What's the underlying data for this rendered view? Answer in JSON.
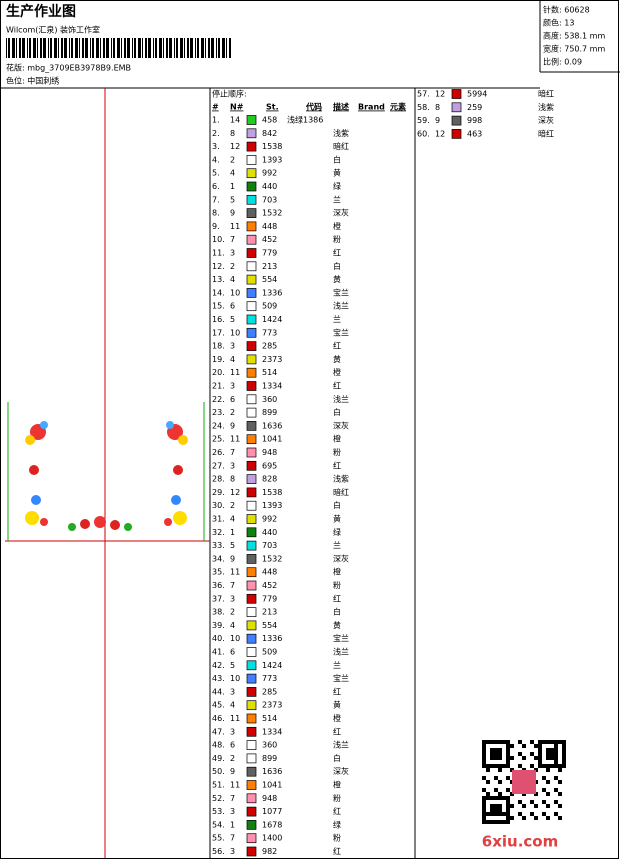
{
  "header": {
    "title": "生产作业图",
    "studio": "Wilcom(汇泉) 装饰工作室",
    "pattern": "花版: mbg_3709EB3978B9.EMB",
    "colorway": "色位: 中国刺绣"
  },
  "info": [
    "针数: 60628",
    "颜色: 13",
    "高度: 538.1 mm",
    "宽度: 750.7 mm",
    "比例: 0.09"
  ],
  "table": {
    "title": "停止顺序:",
    "columns": [
      "#",
      "N#",
      "St.",
      "代码",
      "描述",
      "Brand",
      "元素"
    ],
    "rows": [
      {
        "no": "1.",
        "n": 14,
        "color": "#22cc22",
        "st": 458,
        "code": "浅绿1386"
      },
      {
        "no": "2.",
        "n": 8,
        "color": "#c0a0e0",
        "st": 842,
        "desc": "浅紫"
      },
      {
        "no": "3.",
        "n": 12,
        "color": "#d00000",
        "st": 1538,
        "desc": "暗红"
      },
      {
        "no": "4.",
        "n": 2,
        "color": "#ffffff",
        "st": 1393,
        "desc": "白"
      },
      {
        "no": "5.",
        "n": 4,
        "color": "#e0e000",
        "st": 992,
        "desc": "黄"
      },
      {
        "no": "6.",
        "n": 1,
        "color": "#108010",
        "st": 440,
        "desc": "绿"
      },
      {
        "no": "7.",
        "n": 5,
        "color": "#00e0e0",
        "st": 703,
        "desc": "兰"
      },
      {
        "no": "8.",
        "n": 9,
        "color": "#606060",
        "st": 1532,
        "desc": "深灰"
      },
      {
        "no": "9.",
        "n": 11,
        "color": "#ff8000",
        "st": 448,
        "desc": "橙"
      },
      {
        "no": "10.",
        "n": 7,
        "color": "#ff90b0",
        "st": 452,
        "desc": "粉"
      },
      {
        "no": "11.",
        "n": 3,
        "color": "#d00000",
        "st": 779,
        "desc": "红"
      },
      {
        "no": "12.",
        "n": 2,
        "color": "#ffffff",
        "st": 213,
        "desc": "白"
      },
      {
        "no": "13.",
        "n": 4,
        "color": "#e0e000",
        "st": 554,
        "desc": "黄"
      },
      {
        "no": "14.",
        "n": 10,
        "color": "#4080ff",
        "st": 1336,
        "desc": "宝兰"
      },
      {
        "no": "15.",
        "n": 6,
        "color": "#ffffff",
        "st": 509,
        "desc": "浅兰"
      },
      {
        "no": "16.",
        "n": 5,
        "color": "#00e0e0",
        "st": 1424,
        "desc": "兰"
      },
      {
        "no": "17.",
        "n": 10,
        "color": "#4080ff",
        "st": 773,
        "desc": "宝兰"
      },
      {
        "no": "18.",
        "n": 3,
        "color": "#d00000",
        "st": 285,
        "desc": "红"
      },
      {
        "no": "19.",
        "n": 4,
        "color": "#e0e000",
        "st": 2373,
        "desc": "黄"
      },
      {
        "no": "20.",
        "n": 11,
        "color": "#ff8000",
        "st": 514,
        "desc": "橙"
      },
      {
        "no": "21.",
        "n": 3,
        "color": "#d00000",
        "st": 1334,
        "desc": "红"
      },
      {
        "no": "22.",
        "n": 6,
        "color": "#ffffff",
        "st": 360,
        "desc": "浅兰"
      },
      {
        "no": "23.",
        "n": 2,
        "color": "#ffffff",
        "st": 899,
        "desc": "白"
      },
      {
        "no": "24.",
        "n": 9,
        "color": "#606060",
        "st": 1636,
        "desc": "深灰"
      },
      {
        "no": "25.",
        "n": 11,
        "color": "#ff8000",
        "st": 1041,
        "desc": "橙"
      },
      {
        "no": "26.",
        "n": 7,
        "color": "#ff90b0",
        "st": 948,
        "desc": "粉"
      },
      {
        "no": "27.",
        "n": 3,
        "color": "#d00000",
        "st": 695,
        "desc": "红"
      },
      {
        "no": "28.",
        "n": 8,
        "color": "#c0a0e0",
        "st": 828,
        "desc": "浅紫"
      },
      {
        "no": "29.",
        "n": 12,
        "color": "#d00000",
        "st": 1538,
        "desc": "暗红"
      },
      {
        "no": "30.",
        "n": 2,
        "color": "#ffffff",
        "st": 1393,
        "desc": "白"
      },
      {
        "no": "31.",
        "n": 4,
        "color": "#e0e000",
        "st": 992,
        "desc": "黄"
      },
      {
        "no": "32.",
        "n": 1,
        "color": "#108010",
        "st": 440,
        "desc": "绿"
      },
      {
        "no": "33.",
        "n": 5,
        "color": "#00e0e0",
        "st": 703,
        "desc": "兰"
      },
      {
        "no": "34.",
        "n": 9,
        "color": "#606060",
        "st": 1532,
        "desc": "深灰"
      },
      {
        "no": "35.",
        "n": 11,
        "color": "#ff8000",
        "st": 448,
        "desc": "橙"
      },
      {
        "no": "36.",
        "n": 7,
        "color": "#ff90b0",
        "st": 452,
        "desc": "粉"
      },
      {
        "no": "37.",
        "n": 3,
        "color": "#d00000",
        "st": 779,
        "desc": "红"
      },
      {
        "no": "38.",
        "n": 2,
        "color": "#ffffff",
        "st": 213,
        "desc": "白"
      },
      {
        "no": "39.",
        "n": 4,
        "color": "#e0e000",
        "st": 554,
        "desc": "黄"
      },
      {
        "no": "40.",
        "n": 10,
        "color": "#4080ff",
        "st": 1336,
        "desc": "宝兰"
      },
      {
        "no": "41.",
        "n": 6,
        "color": "#ffffff",
        "st": 509,
        "desc": "浅兰"
      },
      {
        "no": "42.",
        "n": 5,
        "color": "#00e0e0",
        "st": 1424,
        "desc": "兰"
      },
      {
        "no": "43.",
        "n": 10,
        "color": "#4080ff",
        "st": 773,
        "desc": "宝兰"
      },
      {
        "no": "44.",
        "n": 3,
        "color": "#d00000",
        "st": 285,
        "desc": "红"
      },
      {
        "no": "45.",
        "n": 4,
        "color": "#e0e000",
        "st": 2373,
        "desc": "黄"
      },
      {
        "no": "46.",
        "n": 11,
        "color": "#ff8000",
        "st": 514,
        "desc": "橙"
      },
      {
        "no": "47.",
        "n": 3,
        "color": "#d00000",
        "st": 1334,
        "desc": "红"
      },
      {
        "no": "48.",
        "n": 6,
        "color": "#ffffff",
        "st": 360,
        "desc": "浅兰"
      },
      {
        "no": "49.",
        "n": 2,
        "color": "#ffffff",
        "st": 899,
        "desc": "白"
      },
      {
        "no": "50.",
        "n": 9,
        "color": "#606060",
        "st": 1636,
        "desc": "深灰"
      },
      {
        "no": "51.",
        "n": 11,
        "color": "#ff8000",
        "st": 1041,
        "desc": "橙"
      },
      {
        "no": "52.",
        "n": 7,
        "color": "#ff90b0",
        "st": 948,
        "desc": "粉"
      },
      {
        "no": "53.",
        "n": 3,
        "color": "#d00000",
        "st": 1077,
        "desc": "红"
      },
      {
        "no": "54.",
        "n": 1,
        "color": "#108010",
        "st": 1678,
        "desc": "绿"
      },
      {
        "no": "55.",
        "n": 7,
        "color": "#ff90b0",
        "st": 1400,
        "desc": "粉"
      },
      {
        "no": "56.",
        "n": 3,
        "color": "#d00000",
        "st": 982,
        "desc": "红"
      },
      {
        "no": "57.",
        "n": 12,
        "color": "#d00000",
        "st": 5994,
        "desc": "暗红"
      },
      {
        "no": "58.",
        "n": 8,
        "color": "#c0a0e0",
        "st": 259,
        "desc": "浅紫"
      },
      {
        "no": "59.",
        "n": 9,
        "color": "#606060",
        "st": 998,
        "desc": "深灰"
      },
      {
        "no": "60.",
        "n": 12,
        "color": "#d00000",
        "st": 463,
        "desc": "暗红"
      }
    ]
  },
  "watermark": "6xiu.com"
}
